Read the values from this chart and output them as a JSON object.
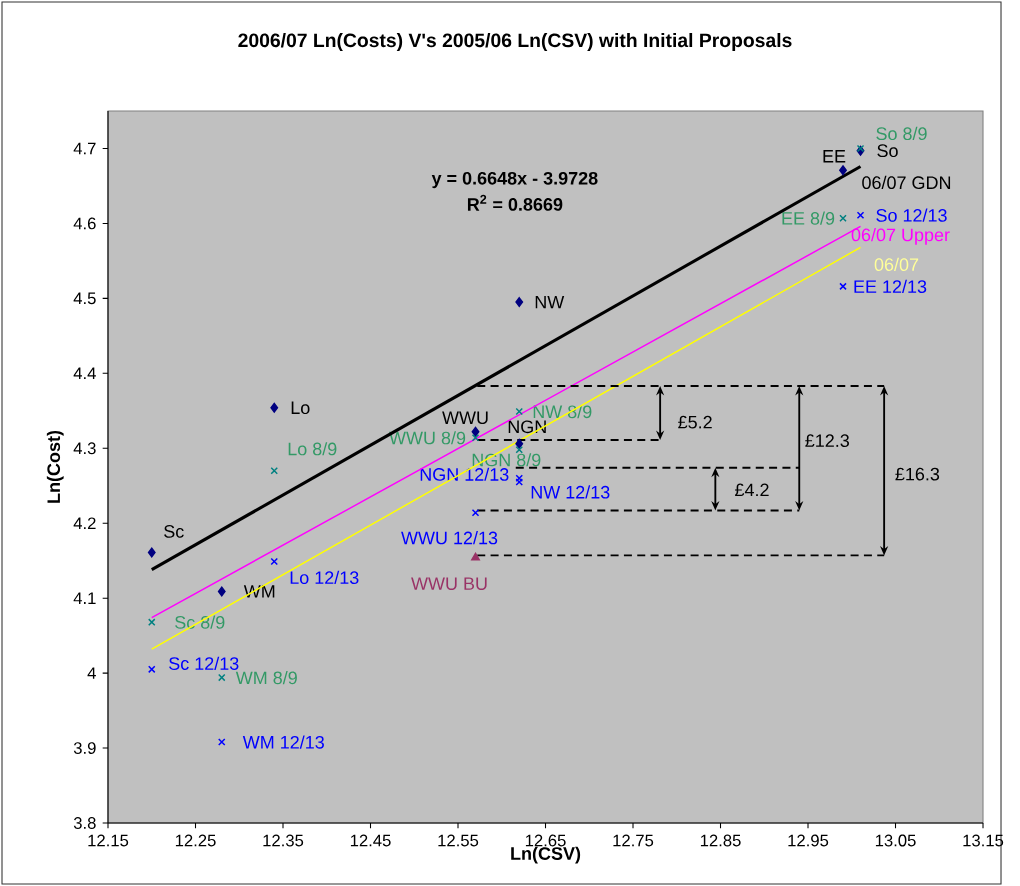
{
  "chart_data": {
    "type": "scatter",
    "title": "2006/07 Ln(Costs) V's 2005/06 Ln(CSV) with Initial Proposals",
    "xlabel": "Ln(CSV)",
    "ylabel": "Ln(Cost)",
    "xlim": [
      12.15,
      13.15
    ],
    "xticks": [
      12.15,
      12.25,
      12.35,
      12.45,
      12.55,
      12.65,
      12.75,
      12.85,
      12.95,
      13.05,
      13.15
    ],
    "ylim": [
      3.8,
      4.75
    ],
    "yticks": [
      3.8,
      3.9,
      {
        "value": 4.0,
        "label": "4"
      },
      4.1,
      4.2,
      4.3,
      4.4,
      4.5,
      4.6,
      4.7
    ],
    "x": [
      12.2,
      12.28,
      12.34,
      12.62,
      12.57,
      12.62,
      12.99,
      13.01
    ],
    "series": [
      {
        "marker": "diamond",
        "color": "#000080",
        "values": [
          4.161,
          4.109,
          4.354,
          4.495,
          4.322,
          4.306,
          4.671,
          4.697
        ],
        "value_labels": [
          "Sc",
          "WM",
          "Lo",
          "NW",
          "WWU",
          "NGN",
          "EE",
          "So"
        ]
      },
      {
        "marker": "cross",
        "color": "#008080",
        "values": [
          4.068,
          3.994,
          4.27,
          4.349,
          4.314,
          4.298,
          4.607,
          4.7
        ],
        "value_labels": [
          "Sc 8/9",
          "WM 8/9",
          "Lo 8/9",
          "NW 8/9",
          "WWU 8/9",
          "NGN 8/9",
          "EE 8/9",
          "So 8/9"
        ]
      },
      {
        "marker": "cross",
        "color": "#0000FF",
        "values": [
          4.005,
          3.908,
          4.149,
          4.255,
          4.214,
          4.26,
          4.516,
          4.611
        ],
        "value_labels": [
          "Sc 12/13",
          "WM 12/13",
          "Lo 12/13",
          "NW 12/13",
          "WWU 12/13",
          "NGN 12/13",
          "EE 12/13",
          "So 12/13"
        ]
      },
      {
        "marker": "triangle",
        "color": "#993366",
        "x": [
          12.57
        ],
        "values": [
          4.154
        ],
        "value_labels": [
          "WWU BU"
        ]
      },
      {
        "type": "line",
        "name": "06/07 GDN",
        "color": "#000000",
        "x": [
          12.2,
          13.01
        ],
        "values": [
          4.138,
          4.676
        ]
      },
      {
        "type": "line",
        "name": "06/07 Upper",
        "color": "#FF00FF",
        "x": [
          12.2,
          13.01
        ],
        "values": [
          4.074,
          4.596
        ]
      },
      {
        "type": "line",
        "name": "06/07",
        "color": "#FFFF00",
        "x": [
          12.2,
          13.01
        ],
        "values": [
          4.032,
          4.568
        ]
      },
      {
        "type": "line",
        "line_style": "dashed",
        "color": "#000000",
        "x": [
          12.572,
          13.037
        ],
        "values": [
          4.383,
          4.383
        ]
      },
      {
        "type": "line",
        "line_style": "dashed",
        "color": "#000000",
        "x": [
          12.572,
          12.781
        ],
        "values": [
          4.311,
          4.311
        ]
      },
      {
        "type": "line",
        "line_style": "dashed",
        "color": "#000000",
        "x": [
          12.616,
          12.94
        ],
        "values": [
          4.274,
          4.274
        ]
      },
      {
        "type": "line",
        "line_style": "dashed",
        "color": "#000000",
        "x": [
          12.572,
          12.94
        ],
        "values": [
          4.217,
          4.217
        ]
      },
      {
        "type": "line",
        "line_style": "dashed",
        "color": "#000000",
        "x": [
          12.572,
          13.037
        ],
        "values": [
          4.157,
          4.157
        ]
      }
    ],
    "annotations": [
      "**y = 0.6648x - 3.9728**",
      "**R$^{2}$ = 0.8669**",
      "£5.2",
      "£12.3",
      "£4.2",
      "£16.3"
    ]
  }
}
